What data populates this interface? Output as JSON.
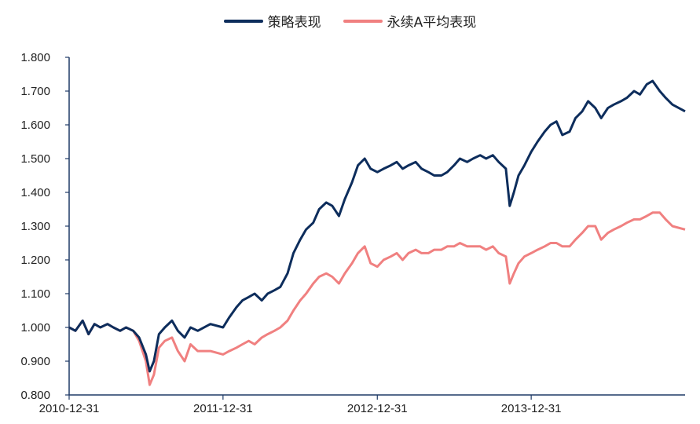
{
  "chart_data": {
    "type": "line",
    "title": "",
    "xlabel": "",
    "ylabel": "",
    "ylim": [
      0.8,
      1.8
    ],
    "y_ticks": [
      "0.800",
      "0.900",
      "1.000",
      "1.100",
      "1.200",
      "1.300",
      "1.400",
      "1.500",
      "1.600",
      "1.700",
      "1.800"
    ],
    "x_ticks": [
      "2010-12-31",
      "2011-12-31",
      "2012-12-31",
      "2013-12-31"
    ],
    "x_range": [
      "2010-12-31",
      "2014-12-31"
    ],
    "legend_position": "top-center",
    "grid": false,
    "series": [
      {
        "name": "策略表现",
        "color": "#0d2d5c",
        "points": [
          [
            "2010-12-31",
            1.0
          ],
          [
            "2011-01-15",
            0.99
          ],
          [
            "2011-02-01",
            1.02
          ],
          [
            "2011-02-15",
            0.98
          ],
          [
            "2011-03-01",
            1.01
          ],
          [
            "2011-03-15",
            1.0
          ],
          [
            "2011-04-01",
            1.01
          ],
          [
            "2011-04-15",
            1.0
          ],
          [
            "2011-05-01",
            0.99
          ],
          [
            "2011-05-15",
            1.0
          ],
          [
            "2011-06-01",
            0.99
          ],
          [
            "2011-06-15",
            0.97
          ],
          [
            "2011-07-01",
            0.92
          ],
          [
            "2011-07-10",
            0.87
          ],
          [
            "2011-07-20",
            0.9
          ],
          [
            "2011-08-01",
            0.98
          ],
          [
            "2011-08-15",
            1.0
          ],
          [
            "2011-09-01",
            1.02
          ],
          [
            "2011-09-15",
            0.99
          ],
          [
            "2011-10-01",
            0.97
          ],
          [
            "2011-10-15",
            1.0
          ],
          [
            "2011-11-01",
            0.99
          ],
          [
            "2011-12-01",
            1.01
          ],
          [
            "2011-12-31",
            1.0
          ],
          [
            "2012-01-15",
            1.03
          ],
          [
            "2012-02-01",
            1.06
          ],
          [
            "2012-02-15",
            1.08
          ],
          [
            "2012-03-01",
            1.09
          ],
          [
            "2012-03-15",
            1.1
          ],
          [
            "2012-04-01",
            1.08
          ],
          [
            "2012-04-15",
            1.1
          ],
          [
            "2012-05-01",
            1.11
          ],
          [
            "2012-05-15",
            1.12
          ],
          [
            "2012-06-01",
            1.16
          ],
          [
            "2012-06-15",
            1.22
          ],
          [
            "2012-07-01",
            1.26
          ],
          [
            "2012-07-15",
            1.29
          ],
          [
            "2012-08-01",
            1.31
          ],
          [
            "2012-08-15",
            1.35
          ],
          [
            "2012-09-01",
            1.37
          ],
          [
            "2012-09-15",
            1.36
          ],
          [
            "2012-10-01",
            1.33
          ],
          [
            "2012-10-15",
            1.38
          ],
          [
            "2012-11-01",
            1.43
          ],
          [
            "2012-11-15",
            1.48
          ],
          [
            "2012-12-01",
            1.5
          ],
          [
            "2012-12-15",
            1.47
          ],
          [
            "2012-12-31",
            1.46
          ],
          [
            "2013-01-15",
            1.47
          ],
          [
            "2013-02-01",
            1.48
          ],
          [
            "2013-02-15",
            1.49
          ],
          [
            "2013-03-01",
            1.47
          ],
          [
            "2013-03-15",
            1.48
          ],
          [
            "2013-04-01",
            1.49
          ],
          [
            "2013-04-15",
            1.47
          ],
          [
            "2013-05-01",
            1.46
          ],
          [
            "2013-05-15",
            1.45
          ],
          [
            "2013-06-01",
            1.45
          ],
          [
            "2013-06-15",
            1.46
          ],
          [
            "2013-07-01",
            1.48
          ],
          [
            "2013-07-15",
            1.5
          ],
          [
            "2013-08-01",
            1.49
          ],
          [
            "2013-08-15",
            1.5
          ],
          [
            "2013-09-01",
            1.51
          ],
          [
            "2013-09-15",
            1.5
          ],
          [
            "2013-10-01",
            1.51
          ],
          [
            "2013-10-15",
            1.49
          ],
          [
            "2013-11-01",
            1.47
          ],
          [
            "2013-11-10",
            1.36
          ],
          [
            "2013-11-20",
            1.4
          ],
          [
            "2013-12-01",
            1.45
          ],
          [
            "2013-12-15",
            1.48
          ],
          [
            "2013-12-31",
            1.52
          ],
          [
            "2014-01-15",
            1.55
          ],
          [
            "2014-02-01",
            1.58
          ],
          [
            "2014-02-15",
            1.6
          ],
          [
            "2014-03-01",
            1.61
          ],
          [
            "2014-03-15",
            1.57
          ],
          [
            "2014-04-01",
            1.58
          ],
          [
            "2014-04-15",
            1.62
          ],
          [
            "2014-05-01",
            1.64
          ],
          [
            "2014-05-15",
            1.67
          ],
          [
            "2014-06-01",
            1.65
          ],
          [
            "2014-06-15",
            1.62
          ],
          [
            "2014-07-01",
            1.65
          ],
          [
            "2014-07-15",
            1.66
          ],
          [
            "2014-08-01",
            1.67
          ],
          [
            "2014-08-15",
            1.68
          ],
          [
            "2014-09-01",
            1.7
          ],
          [
            "2014-09-15",
            1.69
          ],
          [
            "2014-10-01",
            1.72
          ],
          [
            "2014-10-15",
            1.73
          ],
          [
            "2014-11-01",
            1.7
          ],
          [
            "2014-11-15",
            1.68
          ],
          [
            "2014-12-01",
            1.66
          ],
          [
            "2014-12-31",
            1.64
          ]
        ]
      },
      {
        "name": "永续A平均表现",
        "color": "#f08080",
        "points": [
          [
            "2010-12-31",
            1.0
          ],
          [
            "2011-01-15",
            0.99
          ],
          [
            "2011-02-01",
            1.02
          ],
          [
            "2011-02-15",
            0.98
          ],
          [
            "2011-03-01",
            1.01
          ],
          [
            "2011-03-15",
            1.0
          ],
          [
            "2011-04-01",
            1.01
          ],
          [
            "2011-04-15",
            1.0
          ],
          [
            "2011-05-01",
            0.99
          ],
          [
            "2011-05-15",
            1.0
          ],
          [
            "2011-06-01",
            0.99
          ],
          [
            "2011-06-15",
            0.96
          ],
          [
            "2011-07-01",
            0.9
          ],
          [
            "2011-07-10",
            0.83
          ],
          [
            "2011-07-20",
            0.86
          ],
          [
            "2011-08-01",
            0.94
          ],
          [
            "2011-08-15",
            0.96
          ],
          [
            "2011-09-01",
            0.97
          ],
          [
            "2011-09-15",
            0.93
          ],
          [
            "2011-10-01",
            0.9
          ],
          [
            "2011-10-15",
            0.95
          ],
          [
            "2011-11-01",
            0.93
          ],
          [
            "2011-12-01",
            0.93
          ],
          [
            "2011-12-31",
            0.92
          ],
          [
            "2012-01-15",
            0.93
          ],
          [
            "2012-02-01",
            0.94
          ],
          [
            "2012-02-15",
            0.95
          ],
          [
            "2012-03-01",
            0.96
          ],
          [
            "2012-03-15",
            0.95
          ],
          [
            "2012-04-01",
            0.97
          ],
          [
            "2012-04-15",
            0.98
          ],
          [
            "2012-05-01",
            0.99
          ],
          [
            "2012-05-15",
            1.0
          ],
          [
            "2012-06-01",
            1.02
          ],
          [
            "2012-06-15",
            1.05
          ],
          [
            "2012-07-01",
            1.08
          ],
          [
            "2012-07-15",
            1.1
          ],
          [
            "2012-08-01",
            1.13
          ],
          [
            "2012-08-15",
            1.15
          ],
          [
            "2012-09-01",
            1.16
          ],
          [
            "2012-09-15",
            1.15
          ],
          [
            "2012-10-01",
            1.13
          ],
          [
            "2012-10-15",
            1.16
          ],
          [
            "2012-11-01",
            1.19
          ],
          [
            "2012-11-15",
            1.22
          ],
          [
            "2012-12-01",
            1.24
          ],
          [
            "2012-12-15",
            1.19
          ],
          [
            "2012-12-31",
            1.18
          ],
          [
            "2013-01-15",
            1.2
          ],
          [
            "2013-02-01",
            1.21
          ],
          [
            "2013-02-15",
            1.22
          ],
          [
            "2013-03-01",
            1.2
          ],
          [
            "2013-03-15",
            1.22
          ],
          [
            "2013-04-01",
            1.23
          ],
          [
            "2013-04-15",
            1.22
          ],
          [
            "2013-05-01",
            1.22
          ],
          [
            "2013-05-15",
            1.23
          ],
          [
            "2013-06-01",
            1.23
          ],
          [
            "2013-06-15",
            1.24
          ],
          [
            "2013-07-01",
            1.24
          ],
          [
            "2013-07-15",
            1.25
          ],
          [
            "2013-08-01",
            1.24
          ],
          [
            "2013-08-15",
            1.24
          ],
          [
            "2013-09-01",
            1.24
          ],
          [
            "2013-09-15",
            1.23
          ],
          [
            "2013-10-01",
            1.24
          ],
          [
            "2013-10-15",
            1.22
          ],
          [
            "2013-11-01",
            1.21
          ],
          [
            "2013-11-10",
            1.13
          ],
          [
            "2013-11-20",
            1.16
          ],
          [
            "2013-12-01",
            1.19
          ],
          [
            "2013-12-15",
            1.21
          ],
          [
            "2013-12-31",
            1.22
          ],
          [
            "2014-01-15",
            1.23
          ],
          [
            "2014-02-01",
            1.24
          ],
          [
            "2014-02-15",
            1.25
          ],
          [
            "2014-03-01",
            1.25
          ],
          [
            "2014-03-15",
            1.24
          ],
          [
            "2014-04-01",
            1.24
          ],
          [
            "2014-04-15",
            1.26
          ],
          [
            "2014-05-01",
            1.28
          ],
          [
            "2014-05-15",
            1.3
          ],
          [
            "2014-06-01",
            1.3
          ],
          [
            "2014-06-15",
            1.26
          ],
          [
            "2014-07-01",
            1.28
          ],
          [
            "2014-07-15",
            1.29
          ],
          [
            "2014-08-01",
            1.3
          ],
          [
            "2014-08-15",
            1.31
          ],
          [
            "2014-09-01",
            1.32
          ],
          [
            "2014-09-15",
            1.32
          ],
          [
            "2014-10-01",
            1.33
          ],
          [
            "2014-10-15",
            1.34
          ],
          [
            "2014-11-01",
            1.34
          ],
          [
            "2014-11-15",
            1.32
          ],
          [
            "2014-12-01",
            1.3
          ],
          [
            "2014-12-31",
            1.29
          ]
        ]
      }
    ]
  }
}
